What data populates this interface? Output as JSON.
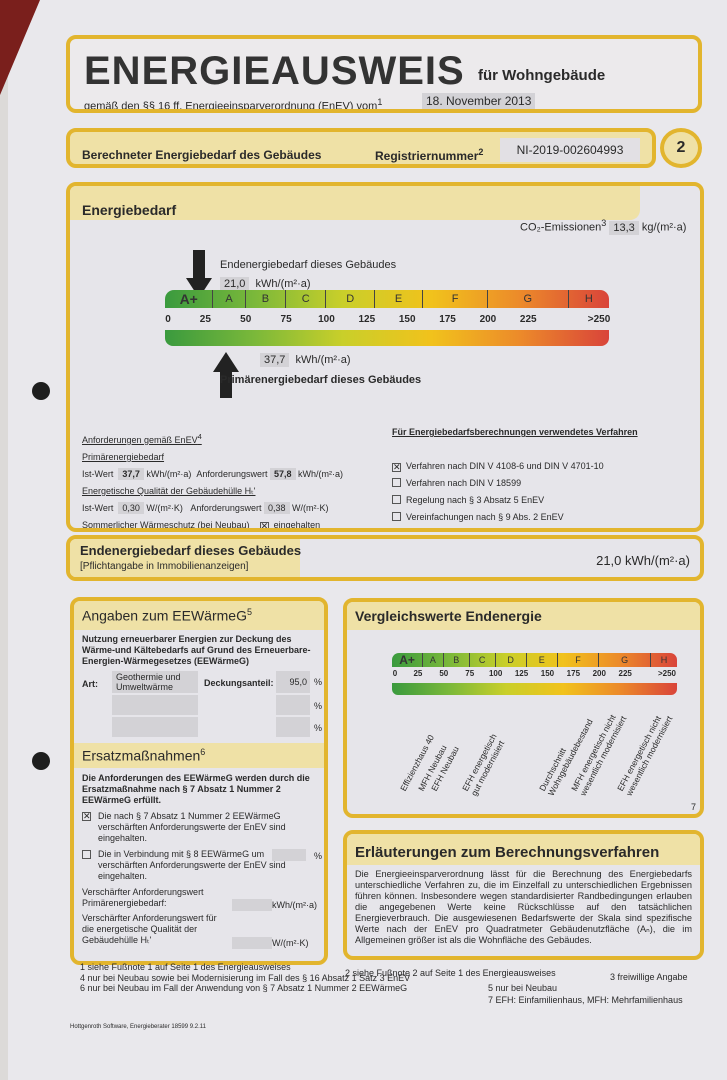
{
  "header": {
    "title": "ENERGIEAUSWEIS",
    "subtitle": "für Wohngebäude",
    "basis": "gemäß den §§ 16 ff. Energieeinsparverordnung (EnEV) vom",
    "basis_sup": "1",
    "date": "18. November 2013"
  },
  "subheader": {
    "label": "Berechneter Energiebedarf des Gebäudes",
    "reg_label": "Registriernummer",
    "reg_sup": "2",
    "reg_value": "NI-2019-002604993",
    "page": "2"
  },
  "energiebedarf": {
    "title": "Energiebedarf",
    "co2_label": "CO₂-Emissionen",
    "co2_sup": "3",
    "co2_value": "13,3",
    "co2_unit": "kg/(m²·a)",
    "end_label": "Endenergiebedarf dieses Gebäudes",
    "end_value": "21,0",
    "end_unit": "kWh/(m²·a)",
    "end_numeric": 21.0,
    "prim_label": "Primärenergiebedarf dieses Gebäudes",
    "prim_value": "37,7",
    "prim_unit": "kWh/(m²·a)",
    "prim_numeric": 37.7,
    "scale": {
      "classes": [
        {
          "label": "A+",
          "from": 0,
          "to": 30
        },
        {
          "label": "A",
          "from": 30,
          "to": 50
        },
        {
          "label": "B",
          "from": 50,
          "to": 75
        },
        {
          "label": "C",
          "from": 75,
          "to": 100
        },
        {
          "label": "D",
          "from": 100,
          "to": 130
        },
        {
          "label": "E",
          "from": 130,
          "to": 160
        },
        {
          "label": "F",
          "from": 160,
          "to": 200
        },
        {
          "label": "G",
          "from": 200,
          "to": 250
        },
        {
          "label": "H",
          "from": 250,
          "to": 275
        }
      ],
      "ticks": [
        "0",
        "25",
        "50",
        "75",
        "100",
        "125",
        "150",
        "175",
        "200",
        "225",
        ">250"
      ],
      "colors": [
        "#3a9a3e",
        "#7ab83a",
        "#c9cf2a",
        "#f1c21c",
        "#ec8a2a",
        "#d9443a"
      ]
    },
    "req": {
      "title": "Anforderungen gemäß EnEV",
      "title_sup": "4",
      "prim_title": "Primärenergiebedarf",
      "ist": "Ist-Wert",
      "prim_ist": "37,7",
      "prim_unit": "kWh/(m²·a)",
      "anf": "Anforderungswert",
      "prim_anf": "57,8",
      "h_title": "Energetische Qualität der Gebäudehülle Hₜ'",
      "h_ist": "0,30",
      "h_unit": "W/(m²·K)",
      "h_anf": "0,38",
      "summer": "Sommerlicher Wärmeschutz (bei Neubau)",
      "summer_val": "eingehalten"
    },
    "method": {
      "title": "Für Energiebedarfsberechnungen verwendetes Verfahren",
      "items": [
        {
          "label": "Verfahren nach DIN V 4108-6 und DIN V 4701-10",
          "checked": true
        },
        {
          "label": "Verfahren nach DIN V 18599",
          "checked": false
        },
        {
          "label": "Regelung nach § 3 Absatz 5 EnEV",
          "checked": false
        },
        {
          "label": "Vereinfachungen nach § 9 Abs. 2 EnEV",
          "checked": false
        }
      ]
    }
  },
  "endbox": {
    "title": "Endenergiebedarf dieses Gebäudes",
    "note": "[Pflichtangabe in Immobilienanzeigen]",
    "value": "21,0 kWh/(m²·a)"
  },
  "eew": {
    "title": "Angaben zum EEWärmeG",
    "sup": "5",
    "intro": "Nutzung erneuerbarer Energien zur Deckung des Wärme-und Kältebedarfs auf Grund des Erneuerbare-Energien-Wärmegesetzes (EEWärmeG)",
    "art": "Art:",
    "art_value": "Geothermie und Umweltwärme",
    "deck": "Deckungsanteil:",
    "deck_value": "95,0",
    "pct": "%"
  },
  "ersatz": {
    "title": "Ersatzmaßnahmen",
    "sup": "6",
    "intro": "Die Anforderungen des EEWärmeG werden durch die Ersatzmaßnahme nach § 7 Absatz 1 Nummer 2 EEWärmeG erfüllt.",
    "opt1": "Die nach § 7 Absatz 1 Nummer 2 EEWärmeG verschärften Anforderungswerte der EnEV sind eingehalten.",
    "opt2": "Die in Verbindung mit § 8 EEWärmeG um verschärften Anforderungswerte der EnEV sind eingehalten.",
    "pct": "%",
    "v1": "Verschärfter Anforderungswert Primärenergiebedarf:",
    "v1_unit": "kWh/(m²·a)",
    "v2": "Verschärfter Anforderungswert für die energetische Qualität der Gebäudehülle Hₜ'",
    "v2_unit": "W/(m²·K)"
  },
  "vergleich": {
    "title": "Vergleichswerte Endenergie",
    "note": "7",
    "labels": [
      {
        "text": "Effizienzhaus 40",
        "value": 15
      },
      {
        "text": "MFH Neubau",
        "value": 33
      },
      {
        "text": "EFH Neubau",
        "value": 45
      },
      {
        "text": "EFH energetisch\ngut modernisiert",
        "value": 75
      },
      {
        "text": "Durchschnitt\nWohngebäudebestand",
        "value": 150
      },
      {
        "text": "MFH energetisch nicht\nwesentlich modernisiert",
        "value": 180
      },
      {
        "text": "EFH energetisch nicht\nwesentlich modernisiert",
        "value": 225
      }
    ]
  },
  "erl": {
    "title": "Erläuterungen zum Berechnungsverfahren",
    "text": "Die Energieeinsparverordnung lässt für die Berechnung des Energiebedarfs unterschiedliche Verfahren zu, die im Einzelfall zu unterschiedlichen Ergebnissen führen können. Insbesondere wegen standardisierter Randbedingungen erlauben die angegebenen Werte keine Rückschlüsse auf den tatsächlichen Energieverbrauch. Die ausgewiesenen Bedarfswerte der Skala sind spezifische Werte nach der EnEV pro Quadratmeter Gebäudenutzfläche (Aₙ), die im Allgemeinen größer ist als die Wohnfläche des Gebäudes."
  },
  "footnotes": {
    "f1": "1  siehe Fußnote 1 auf Seite 1 des Energieausweises",
    "f2": "2  siehe Fußnote 2 auf Seite 1 des Energieausweises",
    "f3": "3  freiwillige Angabe",
    "f4": "4  nur bei Neubau sowie bei Modernisierung im Fall des § 16 Absatz 1 Satz 3 EnEV",
    "f5": "5  nur bei Neubau",
    "f6": "6  nur bei Neubau im Fall der Anwendung von § 7 Absatz 1 Nummer 2 EEWärmeG",
    "f7": "7  EFH: Einfamilienhaus, MFH: Mehrfamilienhaus",
    "software": "Hottgenroth Software, Energieberater 18599 9.2.11"
  }
}
